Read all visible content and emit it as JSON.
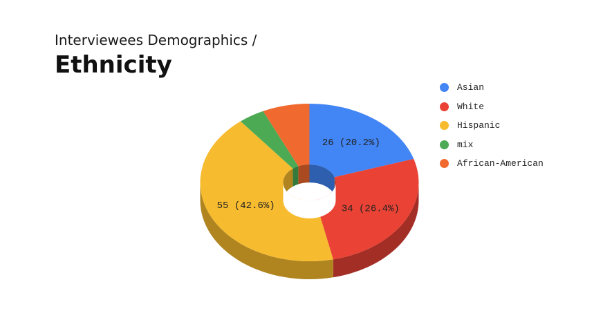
{
  "header": {
    "subtitle": "Interviewees Demographics /",
    "title": "Ethnicity"
  },
  "chart_data": {
    "type": "pie",
    "style": "3d-donut",
    "legend_position": "right",
    "categories": [
      "Asian",
      "White",
      "Hispanic",
      "mix",
      "African-American"
    ],
    "values": [
      26,
      34,
      55,
      5,
      9
    ],
    "percents": [
      20.2,
      26.4,
      42.6,
      3.9,
      7.0
    ],
    "data_labels": [
      "26 (20.2%)",
      "34 (26.4%)",
      "55 (42.6%)",
      "",
      ""
    ],
    "colors": [
      "#4285f4",
      "#ea4335",
      "#f6bb2f",
      "#4caa55",
      "#f06a2f"
    ],
    "side_colors": [
      "#2d5fae",
      "#a32e26",
      "#b08520",
      "#347a3c",
      "#aa4a20"
    ]
  }
}
